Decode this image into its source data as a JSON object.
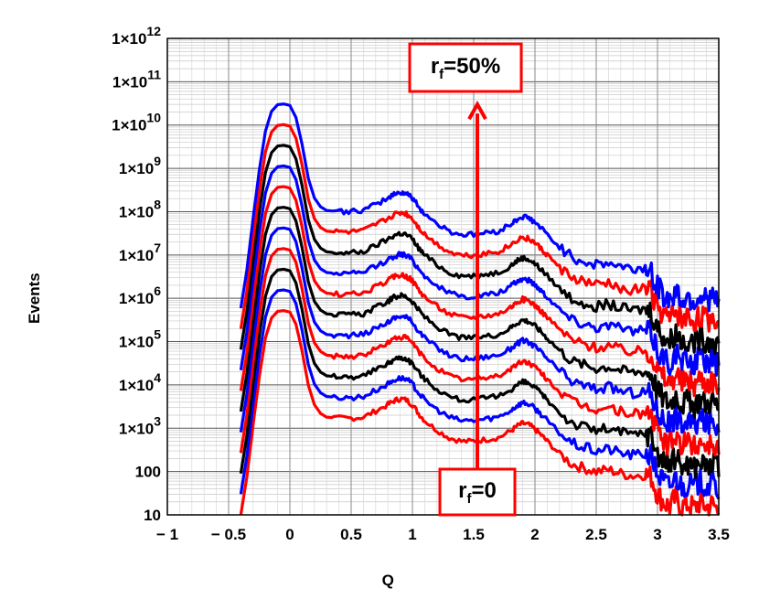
{
  "chart_data": {
    "type": "line",
    "xlabel": "Q",
    "ylabel": "Events",
    "xlim": [
      -1,
      3.5
    ],
    "ylim": [
      10,
      1000000000000
    ],
    "y_scale": "log",
    "grid": true,
    "x_ticks": [
      "− 1",
      "− 0.5",
      "0",
      "0.5",
      "1",
      "1.5",
      "2",
      "2.5",
      "3",
      "3.5"
    ],
    "x_tick_values": [
      -1,
      -0.5,
      0,
      0.5,
      1,
      1.5,
      2,
      2.5,
      3,
      3.5
    ],
    "y_ticks": [
      {
        "value": 10,
        "base": "10",
        "exp": ""
      },
      {
        "value": 100,
        "base": "100",
        "exp": ""
      },
      {
        "value": 1000,
        "base": "1×10",
        "exp": "3"
      },
      {
        "value": 10000,
        "base": "1×10",
        "exp": "4"
      },
      {
        "value": 100000,
        "base": "1×10",
        "exp": "5"
      },
      {
        "value": 1000000,
        "base": "1×10",
        "exp": "6"
      },
      {
        "value": 10000000,
        "base": "1×10",
        "exp": "7"
      },
      {
        "value": 100000000,
        "base": "1×10",
        "exp": "8"
      },
      {
        "value": 1000000000,
        "base": "1×10",
        "exp": "9"
      },
      {
        "value": 10000000000,
        "base": "1×10",
        "exp": "10"
      },
      {
        "value": 100000000000,
        "base": "1×10",
        "exp": "11"
      },
      {
        "value": 1000000000000,
        "base": "1×10",
        "exp": "12"
      }
    ],
    "base_curve": {
      "x": [
        -0.4,
        -0.35,
        -0.3,
        -0.25,
        -0.2,
        -0.15,
        -0.1,
        -0.05,
        0,
        0.05,
        0.1,
        0.15,
        0.2,
        0.25,
        0.3,
        0.4,
        0.5,
        0.6,
        0.7,
        0.8,
        0.85,
        0.9,
        0.95,
        1.0,
        1.05,
        1.1,
        1.2,
        1.3,
        1.4,
        1.5,
        1.6,
        1.7,
        1.8,
        1.85,
        1.9,
        1.95,
        2.0,
        2.05,
        2.1,
        2.2,
        2.3,
        2.4,
        2.5,
        2.6,
        2.7,
        2.8,
        2.9,
        2.95,
        3.0,
        3.05,
        3.1,
        3.15,
        3.2,
        3.25,
        3.3,
        3.35,
        3.4,
        3.45,
        3.5
      ],
      "y": [
        10,
        80,
        1200,
        15000,
        120000,
        350000,
        500000,
        520000,
        480000,
        250000,
        60000,
        10000,
        3500,
        2200,
        1800,
        1700,
        1700,
        1800,
        2500,
        3500,
        4300,
        4800,
        4500,
        3500,
        2200,
        1500,
        900,
        600,
        500,
        500,
        550,
        600,
        850,
        1100,
        1300,
        1200,
        950,
        700,
        500,
        260,
        150,
        120,
        100,
        110,
        90,
        80,
        85,
        75,
        30,
        20,
        15,
        25,
        15,
        18,
        14,
        20,
        15,
        18,
        12
      ]
    },
    "series": [
      {
        "name": "",
        "color": "#ff0000",
        "offset": 1
      },
      {
        "name": "",
        "color": "#0000ff",
        "offset": 3
      },
      {
        "name": "",
        "color": "#000000",
        "offset": 9
      },
      {
        "name": "",
        "color": "#ff0000",
        "offset": 27
      },
      {
        "name": "",
        "color": "#0000ff",
        "offset": 81
      },
      {
        "name": "",
        "color": "#000000",
        "offset": 243
      },
      {
        "name": "",
        "color": "#ff0000",
        "offset": 729
      },
      {
        "name": "",
        "color": "#0000ff",
        "offset": 2187
      },
      {
        "name": "",
        "color": "#000000",
        "offset": 6561
      },
      {
        "name": "",
        "color": "#ff0000",
        "offset": 19683
      },
      {
        "name": "",
        "color": "#0000ff",
        "offset": 59049
      }
    ],
    "annotations": {
      "arrow_x": 1.53,
      "arrow_from": 40,
      "arrow_to": 30000000000.0,
      "arrow_color": "#ff0000",
      "top_label": {
        "main": "r",
        "sub": "f",
        "rest": "=50%"
      },
      "bottom_label": {
        "main": "r",
        "sub": "f",
        "rest": "=0"
      }
    }
  }
}
